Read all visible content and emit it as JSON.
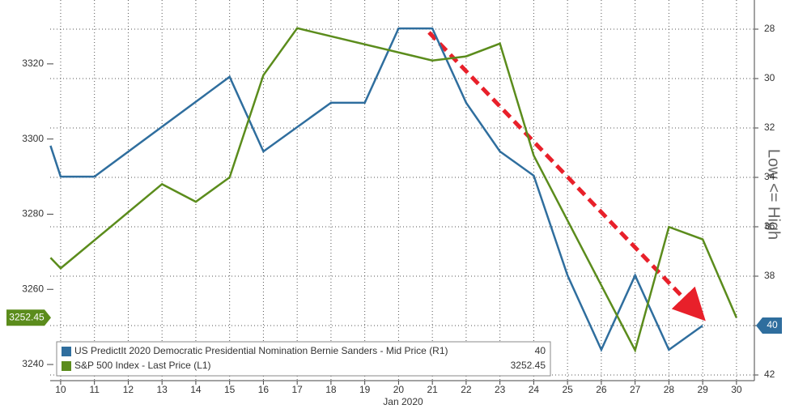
{
  "chart_data": {
    "type": "line",
    "xlabel": "Jan 2020",
    "y2label": "Low <= High",
    "xlim": [
      9.69,
      30.53
    ],
    "xticks": [
      10,
      11,
      12,
      13,
      14,
      15,
      16,
      17,
      18,
      19,
      20,
      21,
      22,
      23,
      24,
      25,
      26,
      27,
      28,
      29,
      30
    ],
    "ylim": [
      3235.7,
      3337
    ],
    "yticks": [
      3240,
      3260,
      3280,
      3300,
      3320
    ],
    "y2lim": [
      42.23,
      26.82
    ],
    "y2ticks": [
      28,
      30,
      32,
      34,
      36,
      38,
      40,
      42
    ],
    "grid": true,
    "legend": "lower left",
    "series": [
      {
        "name": "US PredictIt 2020 Democratic Presidential Nomination Bernie Sanders - Mid Price (R1)",
        "color": "#2f6e9e",
        "axis": "y2",
        "x": [
          9.7,
          10,
          11,
          15,
          16,
          18,
          19,
          20,
          21,
          22,
          23,
          24,
          25,
          26,
          27,
          28,
          29
        ],
        "values": [
          32.72,
          33.97,
          33.97,
          29.93,
          32.95,
          30.98,
          30.98,
          27.97,
          27.97,
          30.98,
          32.95,
          33.93,
          37.97,
          40.98,
          37.97,
          40.98,
          40
        ]
      },
      {
        "name": "S&P 500 Index - Last Price (L1)",
        "color": "#5b8c1c",
        "axis": "y",
        "x": [
          9.7,
          10,
          13,
          14,
          15,
          16,
          17,
          21,
          22,
          23,
          24,
          27,
          28,
          29,
          30
        ],
        "values": [
          3268.4,
          3265.6,
          3288,
          3283.3,
          3289.8,
          3317,
          3329.5,
          3320.9,
          3322,
          3325.4,
          3295.6,
          3243.8,
          3276.6,
          3273.3,
          3252.45
        ]
      }
    ]
  }
}
